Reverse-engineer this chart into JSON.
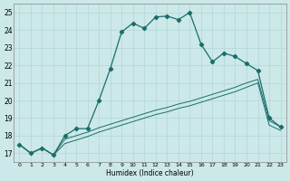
{
  "title": "",
  "xlabel": "Humidex (Indice chaleur)",
  "background_color": "#cce8e8",
  "line_color": "#1a6e6a",
  "xlim": [
    -0.5,
    23.5
  ],
  "ylim": [
    16.5,
    25.5
  ],
  "yticks": [
    17,
    18,
    19,
    20,
    21,
    22,
    23,
    24,
    25
  ],
  "xticks": [
    0,
    1,
    2,
    3,
    4,
    5,
    6,
    7,
    8,
    9,
    10,
    11,
    12,
    13,
    14,
    15,
    16,
    17,
    18,
    19,
    20,
    21,
    22,
    23
  ],
  "line1_x": [
    0,
    1,
    2,
    3,
    4,
    5,
    6,
    7,
    8,
    9,
    10,
    11,
    12,
    13,
    14,
    15,
    16,
    17,
    18,
    19,
    20,
    21,
    22,
    23
  ],
  "line1_y": [
    17.5,
    17.0,
    17.3,
    16.9,
    18.0,
    18.4,
    18.4,
    20.0,
    21.8,
    23.9,
    24.4,
    24.1,
    24.75,
    24.8,
    24.6,
    25.0,
    23.2,
    22.2,
    22.7,
    22.5,
    22.1,
    21.7,
    19.0,
    18.5
  ],
  "line2_x": [
    0,
    1,
    2,
    3,
    4,
    5,
    6,
    7,
    8,
    9,
    10,
    11,
    12,
    13,
    14,
    15,
    16,
    17,
    18,
    19,
    20,
    21,
    22,
    23
  ],
  "line2_y": [
    17.5,
    17.0,
    17.3,
    16.9,
    17.8,
    18.0,
    18.2,
    18.45,
    18.65,
    18.85,
    19.05,
    19.25,
    19.45,
    19.6,
    19.8,
    19.95,
    20.15,
    20.35,
    20.55,
    20.75,
    21.0,
    21.2,
    18.85,
    18.5
  ],
  "line3_x": [
    0,
    1,
    2,
    3,
    4,
    5,
    6,
    7,
    8,
    9,
    10,
    11,
    12,
    13,
    14,
    15,
    16,
    17,
    18,
    19,
    20,
    21,
    22,
    23
  ],
  "line3_y": [
    17.5,
    17.0,
    17.3,
    16.9,
    17.55,
    17.75,
    17.95,
    18.2,
    18.4,
    18.6,
    18.8,
    19.0,
    19.2,
    19.35,
    19.55,
    19.7,
    19.9,
    20.1,
    20.3,
    20.5,
    20.75,
    21.0,
    18.6,
    18.3
  ]
}
